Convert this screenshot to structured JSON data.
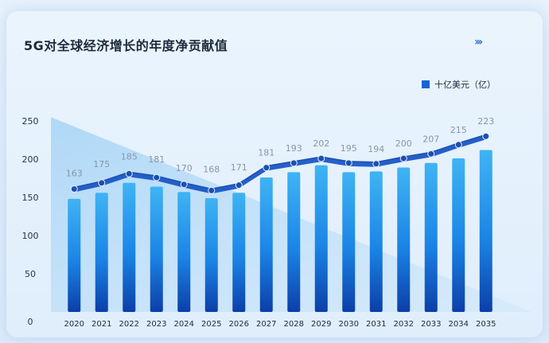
{
  "title": "5G对全球经济增长的年度净贡献值",
  "chevrons": "›››",
  "legend": "十亿美元（亿）",
  "colors": {
    "bar": "#1565d8",
    "bar_light": "#3aa9f0",
    "area": "#1a5fcf",
    "accent": "#3a78d8"
  },
  "chart_data": {
    "type": "bar",
    "categories": [
      "2020",
      "2021",
      "2022",
      "2023",
      "2024",
      "2025",
      "2026",
      "2027",
      "2028",
      "2029",
      "2030",
      "2031",
      "2032",
      "2033",
      "2034",
      "2035"
    ],
    "series": [
      {
        "name": "十亿美元（亿）",
        "values": [
          148,
          156,
          169,
          164,
          157,
          149,
          156,
          176,
          183,
          192,
          183,
          184,
          189,
          195,
          201,
          212
        ]
      }
    ],
    "line_values": [
      163,
      175,
      185,
      181,
      170,
      168,
      171,
      181,
      193,
      202,
      195,
      194,
      200,
      207,
      215,
      223
    ],
    "line_markers": [
      162,
      170,
      182,
      177,
      168,
      160,
      167,
      190,
      196,
      202,
      196,
      195,
      202,
      208,
      220,
      231
    ],
    "yticks": [
      0,
      50,
      100,
      150,
      200,
      250
    ],
    "ylim": [
      0,
      250
    ],
    "grid": false,
    "legend_position": "top-right"
  }
}
